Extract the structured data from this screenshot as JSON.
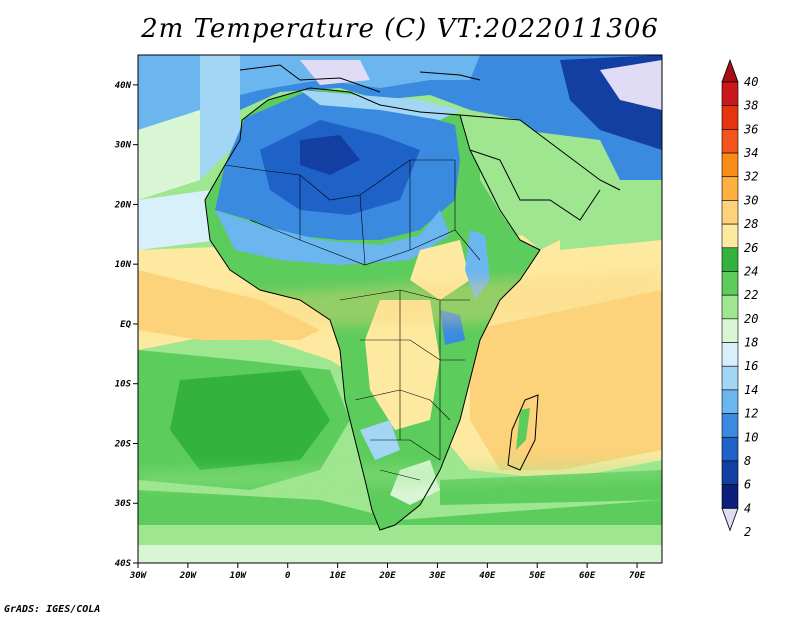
{
  "title": "2m Temperature (C) VT:2022011306",
  "footer": "GrADS: IGES/COLA",
  "map": {
    "lon_range": [
      -30,
      75
    ],
    "lat_range": [
      -40,
      45
    ],
    "lat_ticks": [
      "40N",
      "30N",
      "20N",
      "10N",
      "EQ",
      "10S",
      "20S",
      "30S",
      "40S"
    ],
    "lon_ticks": [
      "30W",
      "20W",
      "10W",
      "0",
      "10E",
      "20E",
      "30E",
      "40E",
      "50E",
      "60E",
      "70E"
    ]
  },
  "colorbar": {
    "labels": [
      "40",
      "38",
      "36",
      "34",
      "32",
      "30",
      "28",
      "26",
      "24",
      "22",
      "20",
      "18",
      "16",
      "14",
      "12",
      "10",
      "8",
      "6",
      "4",
      "2"
    ],
    "colors": [
      "#a50f15",
      "#cb181d",
      "#e6340f",
      "#f2561d",
      "#f98b18",
      "#fbb040",
      "#fcd27a",
      "#fdeaa0",
      "#33b33d",
      "#5ccc5c",
      "#9ee68f",
      "#d9f6d4",
      "#d8f0fa",
      "#a3d6f5",
      "#6bb6ef",
      "#3a8be0",
      "#1f62c7",
      "#123fa1",
      "#0c1f7a",
      "#e0dcf5"
    ]
  }
}
